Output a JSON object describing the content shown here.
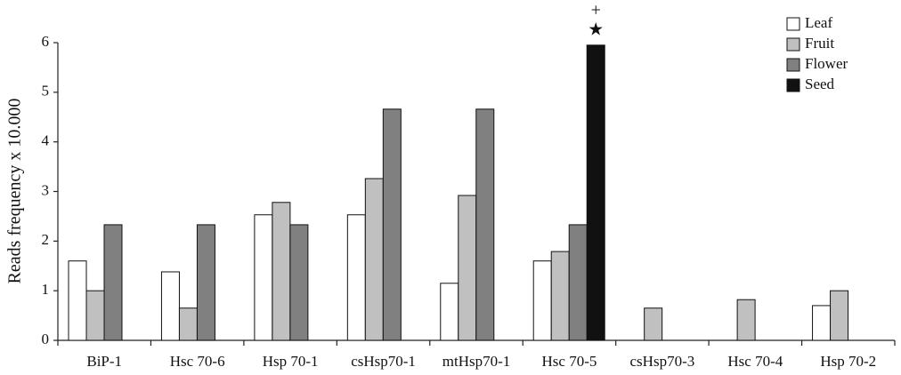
{
  "chart_data": {
    "type": "bar",
    "y_label": "Reads frequency x 10.000",
    "categories": [
      "BiP-1",
      "Hsc 70-6",
      "Hsp 70-1",
      "csHsp70-1",
      "mtHsp70-1",
      "Hsc 70-5",
      "csHsp70-3",
      "Hsc 70-4",
      "Hsp 70-2"
    ],
    "series": [
      {
        "name": "Leaf",
        "color": "#ffffff",
        "values": [
          1.6,
          1.38,
          2.53,
          2.53,
          1.15,
          1.6,
          0,
          0,
          0.7
        ]
      },
      {
        "name": "Fruit",
        "color": "#c0c0c0",
        "values": [
          1.0,
          0.65,
          2.78,
          3.26,
          2.92,
          1.79,
          0.65,
          0.82,
          1.0
        ]
      },
      {
        "name": "Flower",
        "color": "#808080",
        "values": [
          2.33,
          2.33,
          2.33,
          4.66,
          4.66,
          2.33,
          0,
          0,
          0
        ]
      },
      {
        "name": "Seed",
        "color": "#111111",
        "values": [
          0,
          0,
          0,
          0,
          0,
          5.95,
          0,
          0,
          0
        ]
      }
    ],
    "annotations": [
      "+",
      "★"
    ],
    "ylim": [
      0,
      6
    ],
    "yticks": [
      0,
      1,
      2,
      3,
      4,
      5,
      6
    ],
    "legend": "top-right"
  }
}
